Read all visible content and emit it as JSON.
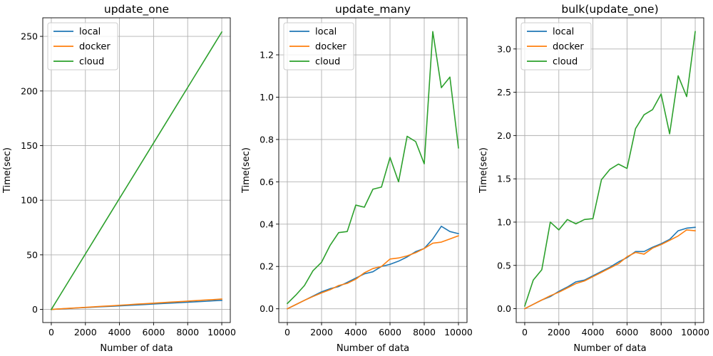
{
  "chart_data": [
    {
      "type": "line",
      "title": "update_one",
      "xlabel": "Number of data",
      "ylabel": "Time(sec)",
      "xlim": [
        -500,
        10500
      ],
      "ylim": [
        -12,
        267
      ],
      "xticks": [
        0,
        2000,
        4000,
        6000,
        8000,
        10000
      ],
      "yticks": [
        0,
        50,
        100,
        150,
        200,
        250
      ],
      "grid": true,
      "legend_position": "top-left",
      "series": [
        {
          "name": "local",
          "color": "#1f77b4",
          "x": [
            0,
            500,
            1000,
            1500,
            2000,
            2500,
            3000,
            3500,
            4000,
            4500,
            5000,
            5500,
            6000,
            6500,
            7000,
            7500,
            8000,
            8500,
            9000,
            9500,
            10000
          ],
          "y": [
            0.0,
            0.4,
            0.8,
            1.3,
            1.7,
            2.1,
            2.5,
            2.9,
            3.3,
            3.7,
            4.1,
            4.5,
            5.0,
            5.4,
            5.8,
            6.2,
            6.6,
            7.0,
            7.4,
            7.9,
            8.3
          ]
        },
        {
          "name": "docker",
          "color": "#ff7f0e",
          "x": [
            0,
            500,
            1000,
            1500,
            2000,
            2500,
            3000,
            3500,
            4000,
            4500,
            5000,
            5500,
            6000,
            6500,
            7000,
            7500,
            8000,
            8500,
            9000,
            9500,
            10000
          ],
          "y": [
            0.0,
            0.5,
            1.0,
            1.4,
            1.9,
            2.4,
            2.9,
            3.3,
            3.8,
            4.3,
            4.8,
            5.2,
            5.7,
            6.2,
            6.7,
            7.1,
            7.6,
            8.1,
            8.6,
            9.0,
            9.5
          ]
        },
        {
          "name": "cloud",
          "color": "#2ca02c",
          "x": [
            0,
            500,
            1000,
            1500,
            2000,
            2500,
            3000,
            3500,
            4000,
            4500,
            5000,
            5500,
            6000,
            6500,
            7000,
            7500,
            8000,
            8500,
            9000,
            9500,
            10000
          ],
          "y": [
            0.0,
            12.7,
            25.4,
            38.1,
            50.8,
            63.5,
            76.2,
            88.9,
            101.6,
            114.3,
            127.0,
            139.7,
            152.4,
            165.1,
            177.8,
            190.5,
            203.2,
            215.9,
            228.6,
            241.3,
            254.0
          ]
        }
      ]
    },
    {
      "type": "line",
      "title": "update_many",
      "xlabel": "Number of data",
      "ylabel": "Time(sec)",
      "xlim": [
        -500,
        10500
      ],
      "ylim": [
        -0.065,
        1.375
      ],
      "xticks": [
        0,
        2000,
        4000,
        6000,
        8000,
        10000
      ],
      "yticks": [
        0.0,
        0.2,
        0.4,
        0.6,
        0.8,
        1.0,
        1.2
      ],
      "grid": true,
      "legend_position": "top-left",
      "series": [
        {
          "name": "local",
          "color": "#1f77b4",
          "x": [
            0,
            500,
            1000,
            1500,
            2000,
            2500,
            3000,
            3500,
            4000,
            4500,
            5000,
            5500,
            6000,
            6500,
            7000,
            7500,
            8000,
            8500,
            9000,
            9500,
            10000
          ],
          "y": [
            0.0,
            0.02,
            0.04,
            0.06,
            0.08,
            0.095,
            0.105,
            0.125,
            0.145,
            0.165,
            0.175,
            0.2,
            0.21,
            0.225,
            0.245,
            0.27,
            0.285,
            0.33,
            0.39,
            0.365,
            0.355
          ]
        },
        {
          "name": "docker",
          "color": "#ff7f0e",
          "x": [
            0,
            500,
            1000,
            1500,
            2000,
            2500,
            3000,
            3500,
            4000,
            4500,
            5000,
            5500,
            6000,
            6500,
            7000,
            7500,
            8000,
            8500,
            9000,
            9500,
            10000
          ],
          "y": [
            0.0,
            0.02,
            0.04,
            0.058,
            0.075,
            0.09,
            0.11,
            0.12,
            0.14,
            0.17,
            0.19,
            0.2,
            0.235,
            0.24,
            0.25,
            0.265,
            0.285,
            0.31,
            0.315,
            0.33,
            0.345
          ]
        },
        {
          "name": "cloud",
          "color": "#2ca02c",
          "x": [
            0,
            500,
            1000,
            1500,
            2000,
            2500,
            3000,
            3500,
            4000,
            4500,
            5000,
            5500,
            6000,
            6500,
            7000,
            7500,
            8000,
            8500,
            9000,
            9500,
            10000
          ],
          "y": [
            0.025,
            0.065,
            0.11,
            0.18,
            0.22,
            0.3,
            0.36,
            0.365,
            0.49,
            0.48,
            0.565,
            0.575,
            0.715,
            0.6,
            0.815,
            0.79,
            0.685,
            1.31,
            1.045,
            1.095,
            0.76
          ]
        }
      ]
    },
    {
      "type": "line",
      "title": "bulk(update_one)",
      "xlabel": "Number of data",
      "ylabel": "Time(sec)",
      "xlim": [
        -500,
        10500
      ],
      "ylim": [
        -0.16,
        3.36
      ],
      "xticks": [
        0,
        2000,
        4000,
        6000,
        8000,
        10000
      ],
      "yticks": [
        0.0,
        0.5,
        1.0,
        1.5,
        2.0,
        2.5,
        3.0
      ],
      "grid": true,
      "legend_position": "top-left",
      "series": [
        {
          "name": "local",
          "color": "#1f77b4",
          "x": [
            0,
            500,
            1000,
            1500,
            2000,
            2500,
            3000,
            3500,
            4000,
            4500,
            5000,
            5500,
            6000,
            6500,
            7000,
            7500,
            8000,
            8500,
            9000,
            9500,
            10000
          ],
          "y": [
            0.0,
            0.05,
            0.1,
            0.14,
            0.2,
            0.25,
            0.31,
            0.33,
            0.38,
            0.43,
            0.48,
            0.54,
            0.59,
            0.66,
            0.66,
            0.71,
            0.75,
            0.8,
            0.9,
            0.93,
            0.94
          ]
        },
        {
          "name": "docker",
          "color": "#ff7f0e",
          "x": [
            0,
            500,
            1000,
            1500,
            2000,
            2500,
            3000,
            3500,
            4000,
            4500,
            5000,
            5500,
            6000,
            6500,
            7000,
            7500,
            8000,
            8500,
            9000,
            9500,
            10000
          ],
          "y": [
            0.0,
            0.05,
            0.1,
            0.15,
            0.19,
            0.24,
            0.29,
            0.32,
            0.37,
            0.42,
            0.47,
            0.52,
            0.6,
            0.65,
            0.63,
            0.7,
            0.74,
            0.79,
            0.84,
            0.91,
            0.9
          ]
        },
        {
          "name": "cloud",
          "color": "#2ca02c",
          "x": [
            0,
            500,
            1000,
            1500,
            2000,
            2500,
            3000,
            3500,
            4000,
            4500,
            5000,
            5500,
            6000,
            6500,
            7000,
            7500,
            8000,
            8500,
            9000,
            9500,
            10000
          ],
          "y": [
            0.03,
            0.33,
            0.45,
            1.0,
            0.91,
            1.03,
            0.98,
            1.03,
            1.04,
            1.49,
            1.61,
            1.67,
            1.62,
            2.08,
            2.24,
            2.3,
            2.48,
            2.02,
            2.69,
            2.45,
            3.2
          ]
        }
      ]
    }
  ]
}
